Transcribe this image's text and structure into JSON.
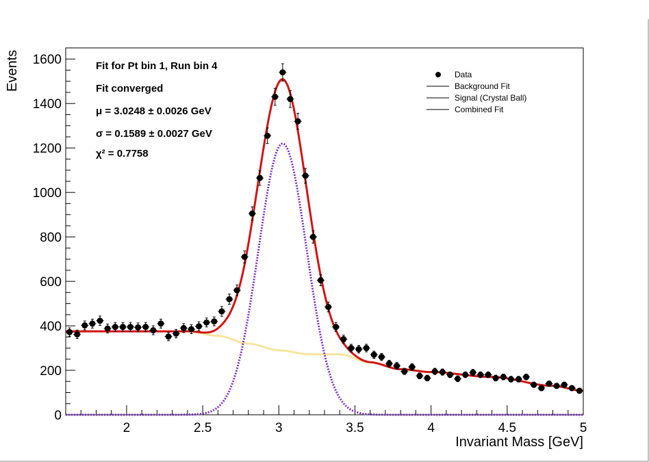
{
  "chart_data": {
    "type": "scatter",
    "title": "",
    "xlabel": "Invariant Mass [GeV]",
    "ylabel": "Events",
    "xlim": [
      1.6,
      5.0
    ],
    "ylim": [
      0,
      1650
    ],
    "x_ticks": [
      2,
      2.5,
      3,
      3.5,
      4,
      4.5,
      5
    ],
    "x_tick_labels": [
      "2",
      "2.5",
      "3",
      "3.5",
      "4",
      "4.5",
      "5"
    ],
    "y_ticks": [
      0,
      200,
      400,
      600,
      800,
      1000,
      1200,
      1400,
      1600
    ],
    "y_tick_labels": [
      "0",
      "200",
      "400",
      "600",
      "800",
      "1000",
      "1200",
      "1400",
      "1600"
    ],
    "grid": false,
    "legend_position": "top-right",
    "stats": [
      "Fit for Pt bin 1, Run bin 4",
      "Fit converged",
      "μ = 3.0248 ± 0.0026 GeV",
      "σ = 0.1589 ± 0.0027 GeV",
      "χ² = 0.7758"
    ],
    "legend": [
      {
        "label": "Data",
        "style": "marker"
      },
      {
        "label": "Background Fit",
        "style": "line"
      },
      {
        "label": "Signal (Crystal Ball)",
        "style": "line"
      },
      {
        "label": "Combined Fit",
        "style": "line"
      }
    ],
    "colors": {
      "data": "#000000",
      "background": "#f5e08a",
      "signal": "#7a2ec0",
      "combined": "#d01414"
    },
    "data_points": {
      "name": "Data",
      "x": [
        1.625,
        1.675,
        1.725,
        1.775,
        1.825,
        1.875,
        1.925,
        1.975,
        2.025,
        2.075,
        2.125,
        2.175,
        2.225,
        2.275,
        2.325,
        2.375,
        2.425,
        2.475,
        2.525,
        2.575,
        2.625,
        2.675,
        2.725,
        2.775,
        2.825,
        2.875,
        2.925,
        2.975,
        3.025,
        3.075,
        3.125,
        3.175,
        3.225,
        3.275,
        3.325,
        3.375,
        3.425,
        3.475,
        3.525,
        3.575,
        3.625,
        3.675,
        3.725,
        3.775,
        3.825,
        3.875,
        3.925,
        3.975,
        4.025,
        4.075,
        4.125,
        4.175,
        4.225,
        4.275,
        4.325,
        4.375,
        4.425,
        4.475,
        4.525,
        4.575,
        4.625,
        4.675,
        4.725,
        4.775,
        4.825,
        4.875,
        4.925,
        4.975
      ],
      "y": [
        372,
        362,
        402,
        410,
        423,
        388,
        395,
        395,
        395,
        393,
        395,
        380,
        410,
        352,
        365,
        390,
        385,
        398,
        415,
        420,
        465,
        520,
        560,
        710,
        905,
        1065,
        1255,
        1430,
        1540,
        1420,
        1320,
        1075,
        800,
        605,
        485,
        395,
        340,
        300,
        295,
        300,
        270,
        260,
        230,
        220,
        195,
        215,
        175,
        165,
        195,
        192,
        180,
        162,
        180,
        190,
        180,
        180,
        165,
        170,
        160,
        160,
        170,
        135,
        120,
        140,
        130,
        135,
        120,
        108
      ],
      "yerr": [
        19,
        19,
        20,
        20,
        21,
        20,
        20,
        20,
        20,
        20,
        20,
        20,
        20,
        19,
        19,
        20,
        20,
        20,
        20,
        20,
        22,
        23,
        24,
        27,
        30,
        33,
        35,
        38,
        39,
        38,
        36,
        33,
        28,
        25,
        22,
        20,
        18,
        17,
        17,
        17,
        16,
        16,
        15,
        15,
        14,
        15,
        13,
        13,
        14,
        14,
        13,
        13,
        13,
        14,
        13,
        13,
        13,
        13,
        13,
        13,
        13,
        12,
        11,
        12,
        11,
        12,
        11,
        10
      ]
    },
    "fit_model": {
      "signal_amplitude": 1220,
      "signal_mean": 3.0248,
      "signal_sigma": 0.1589,
      "background_shape": {
        "x": [
          1.6,
          2.4,
          2.6,
          2.8,
          3.0,
          3.2,
          3.4,
          3.6,
          3.8,
          4.0,
          4.4,
          4.8,
          5.0
        ],
        "y": [
          375,
          375,
          355,
          320,
          290,
          272,
          272,
          235,
          205,
          192,
          170,
          130,
          108
        ]
      }
    }
  }
}
